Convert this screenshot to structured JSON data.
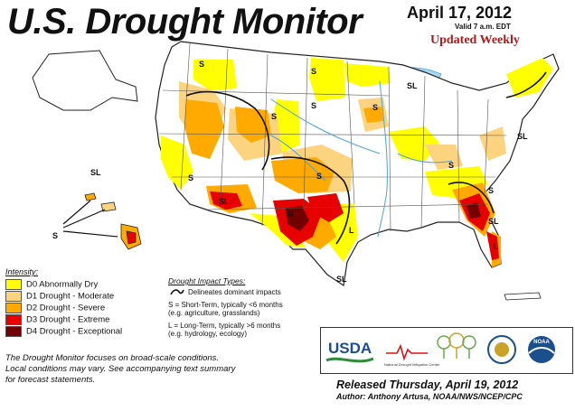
{
  "header": {
    "title": "U.S. Drought Monitor",
    "date": "April 17, 2012",
    "valid": "Valid 7 a.m. EDT",
    "updated": "Updated Weekly"
  },
  "legend": {
    "title": "Intensity:",
    "items": [
      {
        "label": "D0 Abnormally Dry",
        "color": "#ffff00"
      },
      {
        "label": "D1 Drought - Moderate",
        "color": "#fcd37f"
      },
      {
        "label": "D2 Drought - Severe",
        "color": "#ffaa00"
      },
      {
        "label": "D3 Drought - Extreme",
        "color": "#e60000"
      },
      {
        "label": "D4 Drought - Exceptional",
        "color": "#730000"
      }
    ]
  },
  "impact": {
    "title": "Drought Impact Types:",
    "boundary": "Delineates dominant impacts",
    "short_line1": "S = Short-Term, typically <6 months",
    "short_line2": "(e.g. agriculture, grasslands)",
    "long_line1": "L = Long-Term, typically >6 months",
    "long_line2": "(e.g. hydrology, ecology)"
  },
  "note": {
    "line1": "The Drought Monitor focuses on broad-scale conditions.",
    "line2": "Local conditions may vary. See accompanying text summary",
    "line3": "for forecast statements."
  },
  "logos": {
    "usda": "USDA",
    "ndmc": "National Drought Mitigation Center",
    "noaa": "NOAA"
  },
  "footer": {
    "released": "Released Thursday, April 19, 2012",
    "author": "Author: Anthony Artusa, NOAA/NWS/NCEP/CPC"
  },
  "map_labels": {
    "s": "S",
    "sl": "SL",
    "l": "L"
  },
  "colors": {
    "water": "#a6d8ef",
    "river": "#4aa3d8",
    "land": "#ffffff"
  }
}
